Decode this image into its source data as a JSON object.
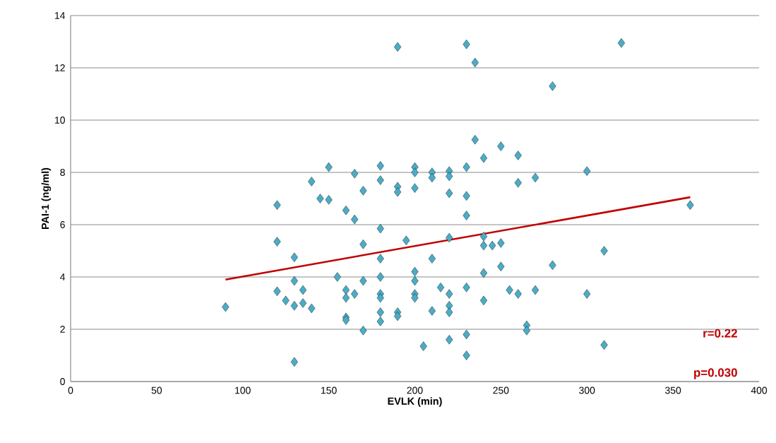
{
  "chart_data": {
    "type": "scatter",
    "xlabel": "EVLK (min)",
    "ylabel": "PAI-1 (ng/ml)",
    "xlim": [
      0,
      400
    ],
    "ylim": [
      0,
      14
    ],
    "xticks": [
      0,
      50,
      100,
      150,
      200,
      250,
      300,
      350,
      400
    ],
    "yticks": [
      0,
      2,
      4,
      6,
      8,
      10,
      12,
      14
    ],
    "grid": "y",
    "series": [
      {
        "color": "#4bacc6",
        "marker": "diamond",
        "x": [
          90,
          120,
          120,
          120,
          125,
          130,
          130,
          130,
          130,
          135,
          135,
          140,
          140,
          145,
          150,
          150,
          155,
          160,
          160,
          160,
          160,
          160,
          165,
          165,
          165,
          170,
          170,
          170,
          170,
          180,
          180,
          180,
          180,
          180,
          180,
          180,
          180,
          180,
          190,
          190,
          190,
          190,
          190,
          195,
          200,
          200,
          200,
          200,
          200,
          200,
          200,
          205,
          210,
          210,
          210,
          210,
          215,
          220,
          220,
          220,
          220,
          220,
          220,
          220,
          220,
          230,
          230,
          230,
          230,
          230,
          230,
          230,
          235,
          235,
          240,
          240,
          240,
          240,
          240,
          245,
          250,
          250,
          250,
          255,
          260,
          260,
          260,
          265,
          265,
          270,
          270,
          280,
          280,
          300,
          300,
          310,
          310,
          320,
          360
        ],
        "values": [
          2.85,
          6.75,
          5.35,
          3.45,
          3.1,
          4.75,
          3.85,
          2.9,
          0.75,
          3.5,
          3.0,
          7.65,
          2.8,
          7.0,
          8.2,
          6.95,
          4.0,
          6.55,
          3.5,
          3.2,
          2.45,
          2.35,
          7.95,
          6.2,
          3.35,
          7.3,
          5.25,
          3.85,
          1.95,
          8.25,
          7.7,
          5.85,
          4.7,
          4.0,
          3.35,
          3.2,
          2.65,
          2.3,
          12.8,
          7.45,
          7.25,
          2.65,
          2.5,
          5.4,
          8.2,
          8.0,
          7.4,
          4.2,
          3.85,
          3.35,
          3.2,
          1.35,
          8.0,
          7.8,
          4.7,
          2.7,
          3.6,
          8.05,
          7.85,
          7.2,
          5.5,
          3.35,
          2.9,
          2.65,
          1.6,
          12.9,
          8.2,
          7.1,
          6.35,
          3.6,
          1.8,
          1.0,
          12.2,
          9.25,
          8.55,
          5.55,
          5.2,
          4.15,
          3.1,
          5.2,
          9.0,
          5.3,
          4.4,
          3.5,
          8.65,
          7.6,
          3.35,
          2.15,
          1.95,
          7.8,
          3.5,
          11.3,
          4.45,
          8.05,
          3.35,
          5.0,
          1.4,
          12.95,
          6.75
        ]
      },
      {
        "type": "line",
        "color": "#c00000",
        "x": [
          90,
          360
        ],
        "values": [
          3.9,
          7.05
        ]
      }
    ],
    "annotations": [
      "r=0.22",
      "p=0.030"
    ]
  }
}
